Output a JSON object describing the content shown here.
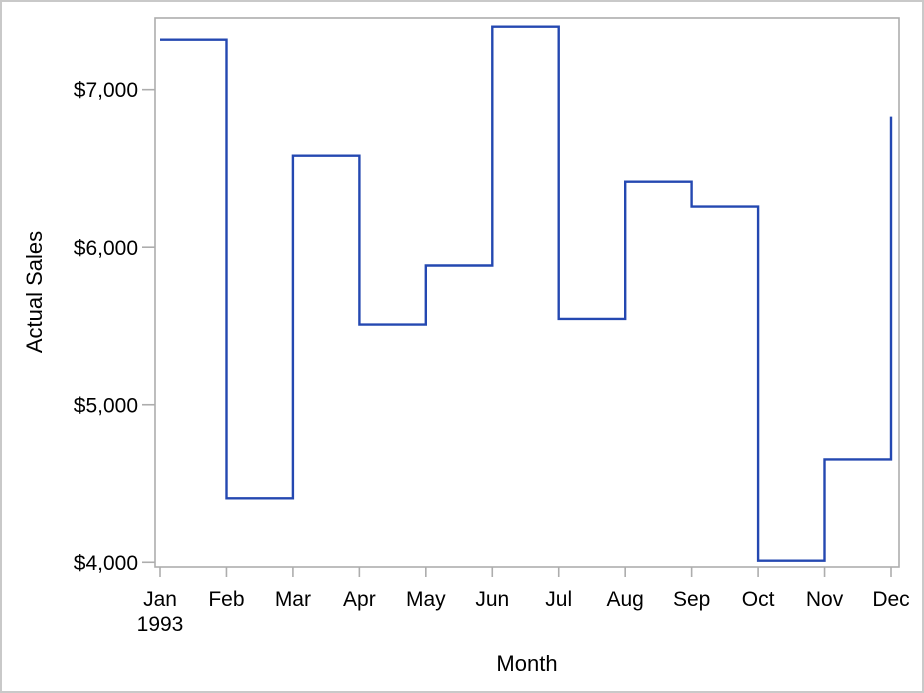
{
  "chart_data": {
    "type": "line",
    "subtype": "step",
    "title": "",
    "categories": [
      "Jan",
      "Feb",
      "Mar",
      "Apr",
      "May",
      "Jun",
      "Jul",
      "Aug",
      "Sep",
      "Oct",
      "Nov",
      "Dec"
    ],
    "year_label": "1993",
    "values": [
      7317,
      4406,
      6581,
      5509,
      5884,
      7400,
      5545,
      6416,
      6258,
      4010,
      4653,
      6829
    ],
    "xlabel": "Month",
    "ylabel": "Actual Sales",
    "yticks": [
      4000,
      5000,
      6000,
      7000
    ],
    "ytick_labels": [
      "$4,000",
      "$5,000",
      "$6,000",
      "$7,000"
    ],
    "ylim": [
      3970,
      7455
    ],
    "grid": false,
    "legend": "none",
    "line_color": "#2448b1",
    "axis_color": "#adadad",
    "text_color": "#000000",
    "background_color": "#ffffff"
  }
}
